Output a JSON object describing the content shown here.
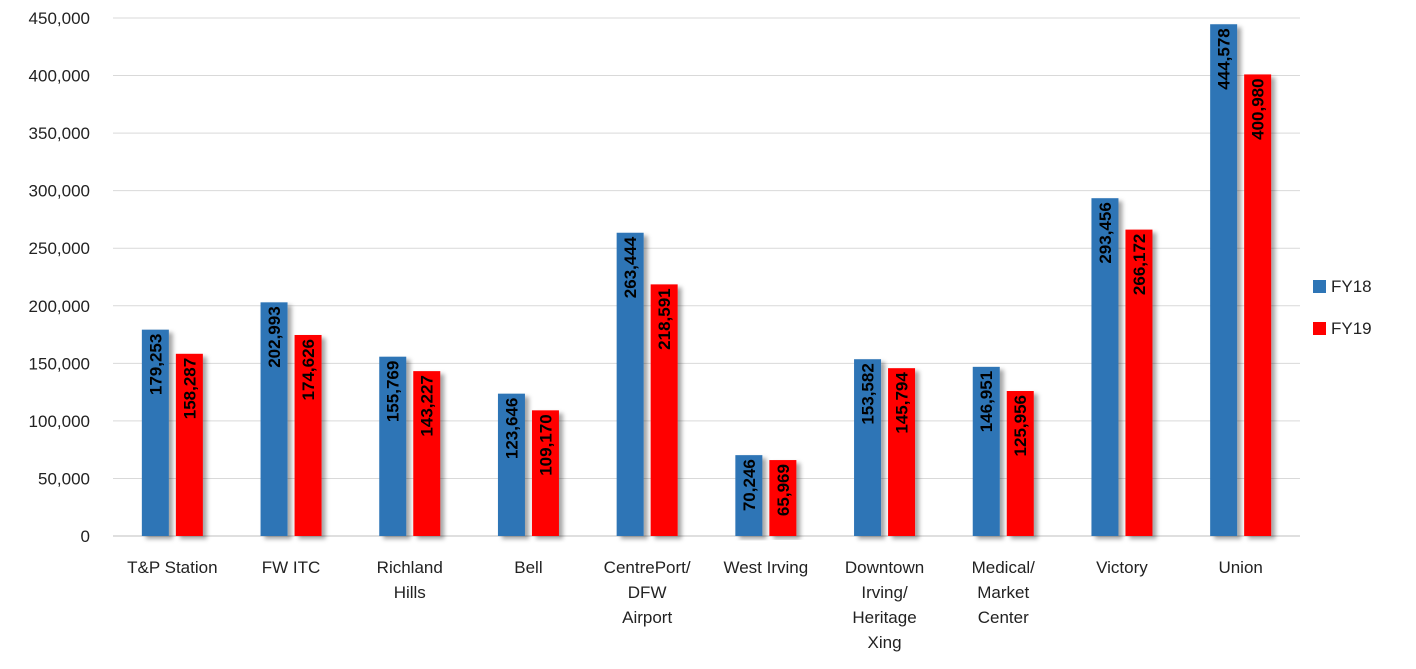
{
  "chart_data": {
    "type": "bar",
    "categories": [
      [
        "T&P Station"
      ],
      [
        "FW ITC"
      ],
      [
        "Richland",
        "Hills"
      ],
      [
        "Bell"
      ],
      [
        "CentrePort/",
        "DFW",
        "Airport"
      ],
      [
        "West Irving"
      ],
      [
        "Downtown",
        "Irving/",
        "Heritage",
        "Xing"
      ],
      [
        "Medical/",
        "Market",
        "Center"
      ],
      [
        "Victory"
      ],
      [
        "Union"
      ]
    ],
    "series": [
      {
        "name": "FY18",
        "color": "#2e75b6",
        "values": [
          179253,
          202993,
          155769,
          123646,
          263444,
          70246,
          153582,
          146951,
          293456,
          444578
        ],
        "labels": [
          "179,253",
          "202,993",
          "155,769",
          "123,646",
          "263,444",
          "70,246",
          "153,582",
          "146,951",
          "293,456",
          "444,578"
        ]
      },
      {
        "name": "FY19",
        "color": "#ff0000",
        "values": [
          158287,
          174626,
          143227,
          109170,
          218591,
          65969,
          145794,
          125956,
          266172,
          400980
        ],
        "labels": [
          "158,287",
          "174,626",
          "143,227",
          "109,170",
          "218,591",
          "65,969",
          "145,794",
          "125,956",
          "266,172",
          "400,980"
        ]
      }
    ],
    "yticks": [
      "0",
      "50,000",
      "100,000",
      "150,000",
      "200,000",
      "250,000",
      "300,000",
      "350,000",
      "400,000",
      "450,000"
    ],
    "ylim": [
      0,
      450000
    ],
    "grid": true,
    "legend": "right",
    "title": "",
    "xlabel": "",
    "ylabel": ""
  }
}
